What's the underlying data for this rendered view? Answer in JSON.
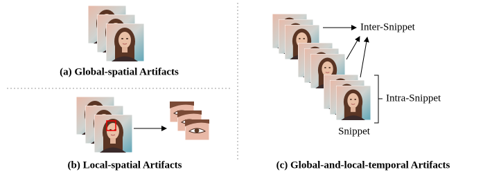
{
  "panels": [
    {
      "caption": "(a) Global-spatial Artifacts"
    },
    {
      "caption": "(b) Local-spatial Artifacts"
    },
    {
      "caption": "(c) Global-and-local-temporal Artifacts"
    }
  ],
  "labels": {
    "inter_snippet": "Inter-Snippet",
    "intra_snippet": "Intra-Snippet",
    "snippet": "Snippet"
  }
}
